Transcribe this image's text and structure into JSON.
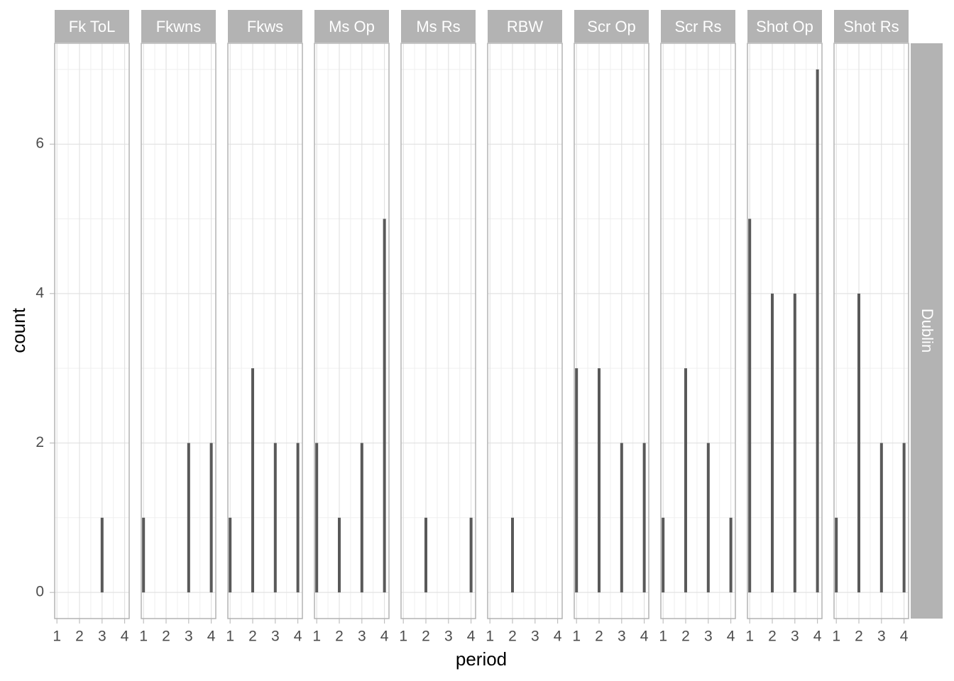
{
  "chart_data": {
    "type": "bar",
    "x_label": "period",
    "y_label": "count",
    "row_label": "Dublin",
    "color": "#595959",
    "grid": true,
    "xlim": [
      0.9,
      4.2
    ],
    "xticks": [
      1,
      2,
      3,
      4
    ],
    "ylim": [
      -0.35,
      7.35
    ],
    "yticks": [
      0,
      2,
      4,
      6
    ],
    "panels": [
      {
        "title": "Fk ToL",
        "x": [
          3
        ],
        "values": [
          1
        ]
      },
      {
        "title": "Fkwns",
        "x": [
          1,
          3,
          4
        ],
        "values": [
          1,
          2,
          2
        ]
      },
      {
        "title": "Fkws",
        "x": [
          1,
          2,
          3,
          4
        ],
        "values": [
          1,
          3,
          2,
          2
        ]
      },
      {
        "title": "Ms Op",
        "x": [
          1,
          2,
          3,
          4
        ],
        "values": [
          2,
          1,
          2,
          5
        ]
      },
      {
        "title": "Ms Rs",
        "x": [
          2,
          4
        ],
        "values": [
          1,
          1
        ]
      },
      {
        "title": "RBW",
        "x": [
          2
        ],
        "values": [
          1
        ]
      },
      {
        "title": "Scr Op",
        "x": [
          1,
          2,
          3,
          4
        ],
        "values": [
          3,
          3,
          2,
          2
        ]
      },
      {
        "title": "Scr Rs",
        "x": [
          1,
          2,
          3,
          4
        ],
        "values": [
          1,
          3,
          2,
          1
        ]
      },
      {
        "title": "Shot Op",
        "x": [
          1,
          2,
          3,
          4
        ],
        "values": [
          5,
          4,
          4,
          7
        ]
      },
      {
        "title": "Shot Rs",
        "x": [
          1,
          2,
          3,
          4
        ],
        "values": [
          1,
          4,
          2,
          2
        ]
      }
    ]
  }
}
